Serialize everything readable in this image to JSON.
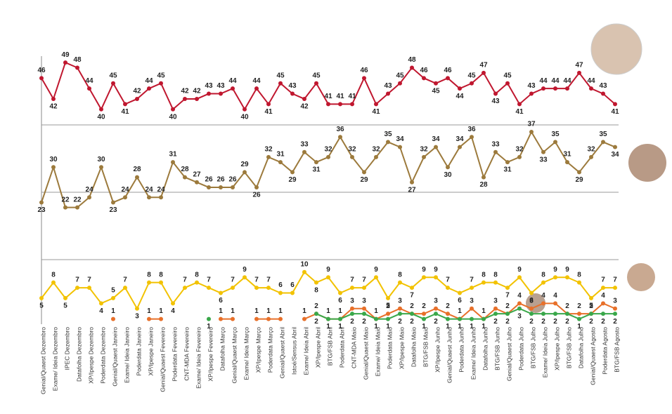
{
  "chart_data": [
    {
      "type": "line",
      "ylim": [
        37,
        50.5
      ],
      "series": [
        {
          "color": "#c0172f",
          "values": [
            46,
            42,
            49,
            48,
            44,
            40,
            45,
            41,
            42,
            44,
            45,
            40,
            42,
            42,
            43,
            43,
            44,
            40,
            44,
            41,
            45,
            43,
            42,
            45,
            41,
            41,
            41,
            46,
            41,
            43,
            45,
            48,
            46,
            45,
            46,
            44,
            45,
            47,
            43,
            45,
            41,
            43,
            44,
            44,
            44,
            47,
            44,
            43,
            41
          ]
        }
      ]
    },
    {
      "type": "line",
      "ylim": [
        20,
        38.4
      ],
      "series": [
        {
          "color": "#9c7a3c",
          "values": [
            23,
            30,
            22,
            22,
            24,
            30,
            23,
            24,
            28,
            24,
            24,
            31,
            28,
            27,
            26,
            26,
            26,
            29,
            26,
            32,
            31,
            29,
            33,
            31,
            32,
            36,
            32,
            29,
            32,
            35,
            34,
            27,
            32,
            34,
            30,
            34,
            36,
            28,
            33,
            31,
            32,
            37,
            33,
            35,
            31,
            29,
            32,
            35,
            34
          ]
        }
      ]
    },
    {
      "type": "line",
      "ylim": [
        0,
        12.4
      ],
      "categories": [
        "Genial/Quaest Dezembro",
        "Exame/ Ideia Dezembro",
        "IPEC Dezembro",
        "Datafolha Dezembro",
        "XP/Ipespe Dezembro",
        "Poderdata Dezembro",
        "Genial/Quaest Janeiro",
        "Exame/ Ideia Janeiro",
        "Poderdata Janeiro",
        "XP/Ipespe Janeiro",
        "Genial/Quaest Fevereiro",
        "Poderdata Fevereiro",
        "CNT-MDA Fevereiro",
        "Exame/ Ideia Fevereiro",
        "XP/Ipespe Fevereiro",
        "Datafolha Março",
        "Genial/Quaest Março",
        "Exame/ Ideia Março",
        "XP/Ipespe Março",
        "Poderdata Março",
        "Genial/Quaest Abril",
        "Istoé/Sensus Abril",
        "Exame/ Ideia Abril",
        "XP/Ipespe Abril",
        "BTG/FSB Abril",
        "Poderdata Abril",
        "CNT-MDA Maio",
        "Genial/Quaest Maio",
        "Exame/ Ideia Maio",
        "Poderdata Maio",
        "XP/Ipespe Maio",
        "Datafolha Maio",
        "BTG/FSB Maio",
        "XP/Ipespe Junho",
        "Genial/Quaest Junho",
        "Poderdata Junho",
        "Exame/ Ideia Junho",
        "Datafolha Junho",
        "BTG/FSB Junho",
        "Genial/Quaest Julho",
        "Poderdata Julho",
        "BTG/FSB Julho",
        "Exame/ Ideia Julho",
        "XP/Ipespe Julho",
        "BTG/FSB Julho",
        "Datafolha Julho",
        "Genial/Quaest Agosto",
        "Poderdata Agosto",
        "BTG/FSB Agosto"
      ],
      "series": [
        {
          "color": "#f2c200",
          "values": [
            5,
            8,
            5,
            7,
            7,
            4,
            5,
            7,
            3,
            8,
            8,
            4,
            7,
            8,
            7,
            6,
            7,
            9,
            7,
            7,
            6,
            6,
            10,
            8,
            9,
            6,
            7,
            7,
            9,
            5,
            8,
            7,
            9,
            9,
            7,
            6,
            7,
            8,
            8,
            7,
            9,
            6,
            8,
            9,
            9,
            8,
            5,
            7,
            7
          ]
        },
        {
          "color": "#e8702a",
          "values": [
            null,
            null,
            null,
            null,
            null,
            null,
            1,
            null,
            null,
            1,
            1,
            null,
            null,
            null,
            null,
            1,
            1,
            null,
            1,
            1,
            1,
            null,
            1,
            2,
            1,
            1,
            3,
            3,
            1,
            2,
            3,
            2,
            2,
            3,
            2,
            1,
            3,
            1,
            3,
            2,
            4,
            3,
            4,
            4,
            2,
            2,
            2,
            4,
            3
          ]
        },
        {
          "color": "#3aa84a",
          "values": [
            null,
            null,
            null,
            null,
            null,
            null,
            null,
            null,
            null,
            null,
            null,
            null,
            null,
            null,
            1,
            null,
            null,
            null,
            null,
            null,
            null,
            null,
            null,
            2,
            1,
            1,
            2,
            2,
            1,
            1,
            2,
            2,
            1,
            2,
            1,
            1,
            1,
            1,
            2,
            2,
            3,
            2,
            2,
            2,
            2,
            1,
            2,
            2,
            2
          ]
        }
      ]
    }
  ]
}
